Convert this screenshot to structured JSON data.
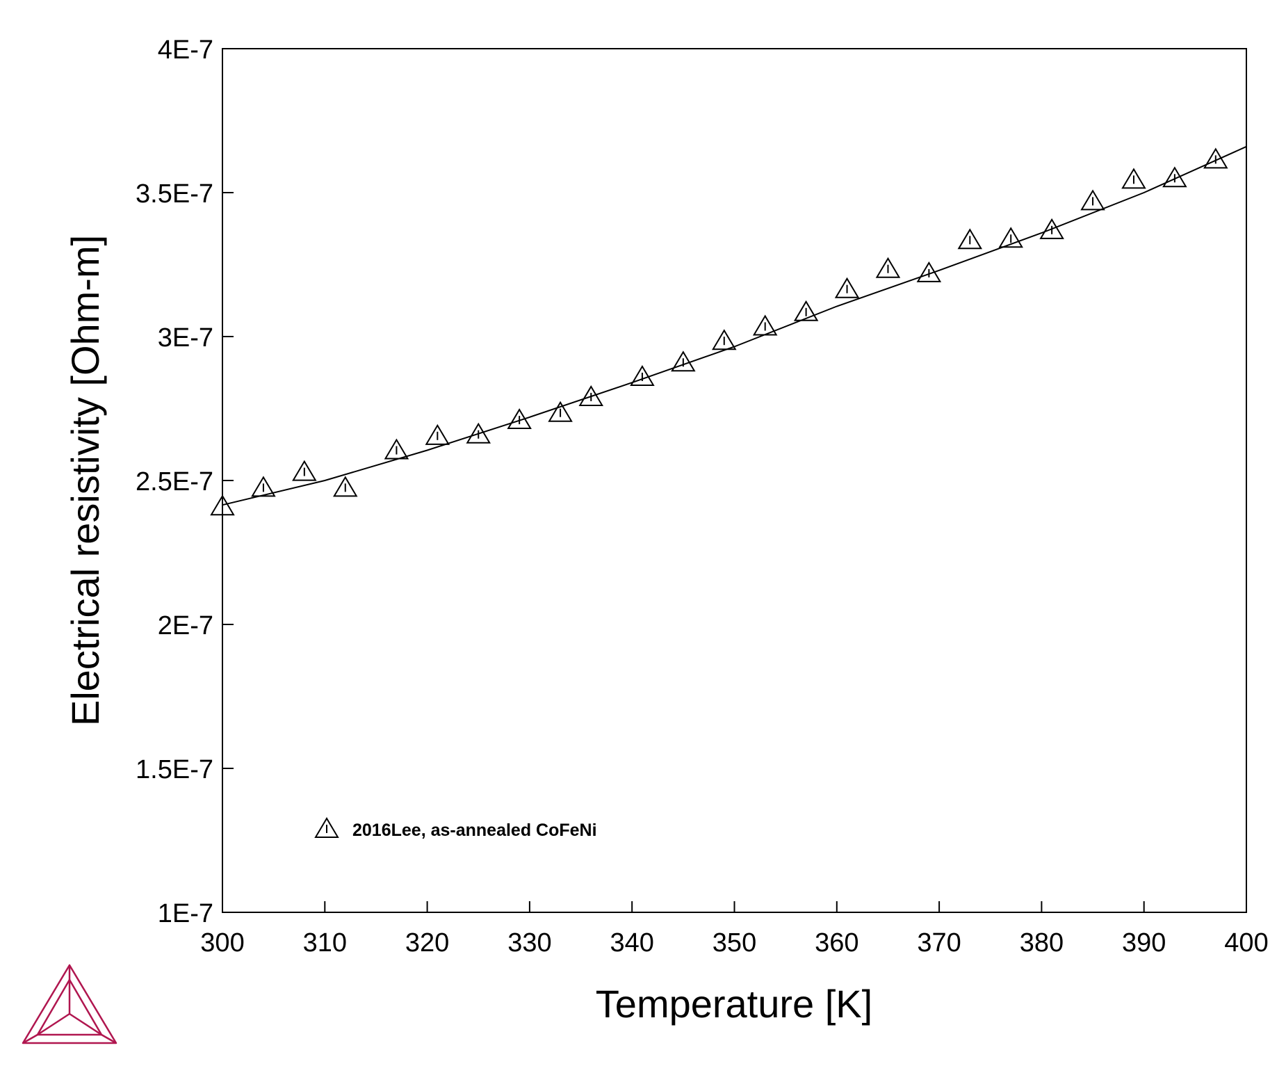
{
  "chart_data": {
    "type": "scatter",
    "xlabel": "Temperature [K]",
    "ylabel": "Electrical resistivity [Ohm-m]",
    "xlim": [
      300,
      400
    ],
    "ylim": [
      1e-07,
      4e-07
    ],
    "x_ticks": [
      "300",
      "310",
      "320",
      "330",
      "340",
      "350",
      "360",
      "370",
      "380",
      "390",
      "400"
    ],
    "y_ticks": [
      "1E-7",
      "1.5E-7",
      "2E-7",
      "2.5E-7",
      "3E-7",
      "3.5E-7",
      "4E-7"
    ],
    "grid": false,
    "legend_placement": "lower-left",
    "series": [
      {
        "name": "2016Lee, as-annealed CoFeNi",
        "marker": "triangle-open",
        "x": [
          300,
          304,
          308,
          312,
          317,
          321,
          325,
          329,
          333,
          336,
          341,
          345,
          349,
          353,
          357,
          361,
          365,
          369,
          373,
          377,
          381,
          385,
          389,
          393,
          397
        ],
        "y": [
          2.41e-07,
          2.475e-07,
          2.53e-07,
          2.475e-07,
          2.605e-07,
          2.655e-07,
          2.66e-07,
          2.71e-07,
          2.735e-07,
          2.79e-07,
          2.86e-07,
          2.91e-07,
          2.985e-07,
          3.035e-07,
          3.085e-07,
          3.165e-07,
          3.235e-07,
          3.22e-07,
          3.335e-07,
          3.34e-07,
          3.37e-07,
          3.47e-07,
          3.545e-07,
          3.55e-07,
          3.615e-07
        ]
      },
      {
        "line": "calculated",
        "x": [
          300,
          310,
          320,
          330,
          340,
          350,
          360,
          370,
          380,
          390,
          400
        ],
        "y": [
          2.415e-07,
          2.5e-07,
          2.605e-07,
          2.72e-07,
          2.84e-07,
          2.965e-07,
          3.105e-07,
          3.23e-07,
          3.36e-07,
          3.5e-07,
          3.66e-07
        ]
      }
    ]
  },
  "colors": {
    "axes": "#000000",
    "logo": "#b0164f"
  },
  "logo": {
    "icon": "thermo-calc-triangle-logo"
  }
}
